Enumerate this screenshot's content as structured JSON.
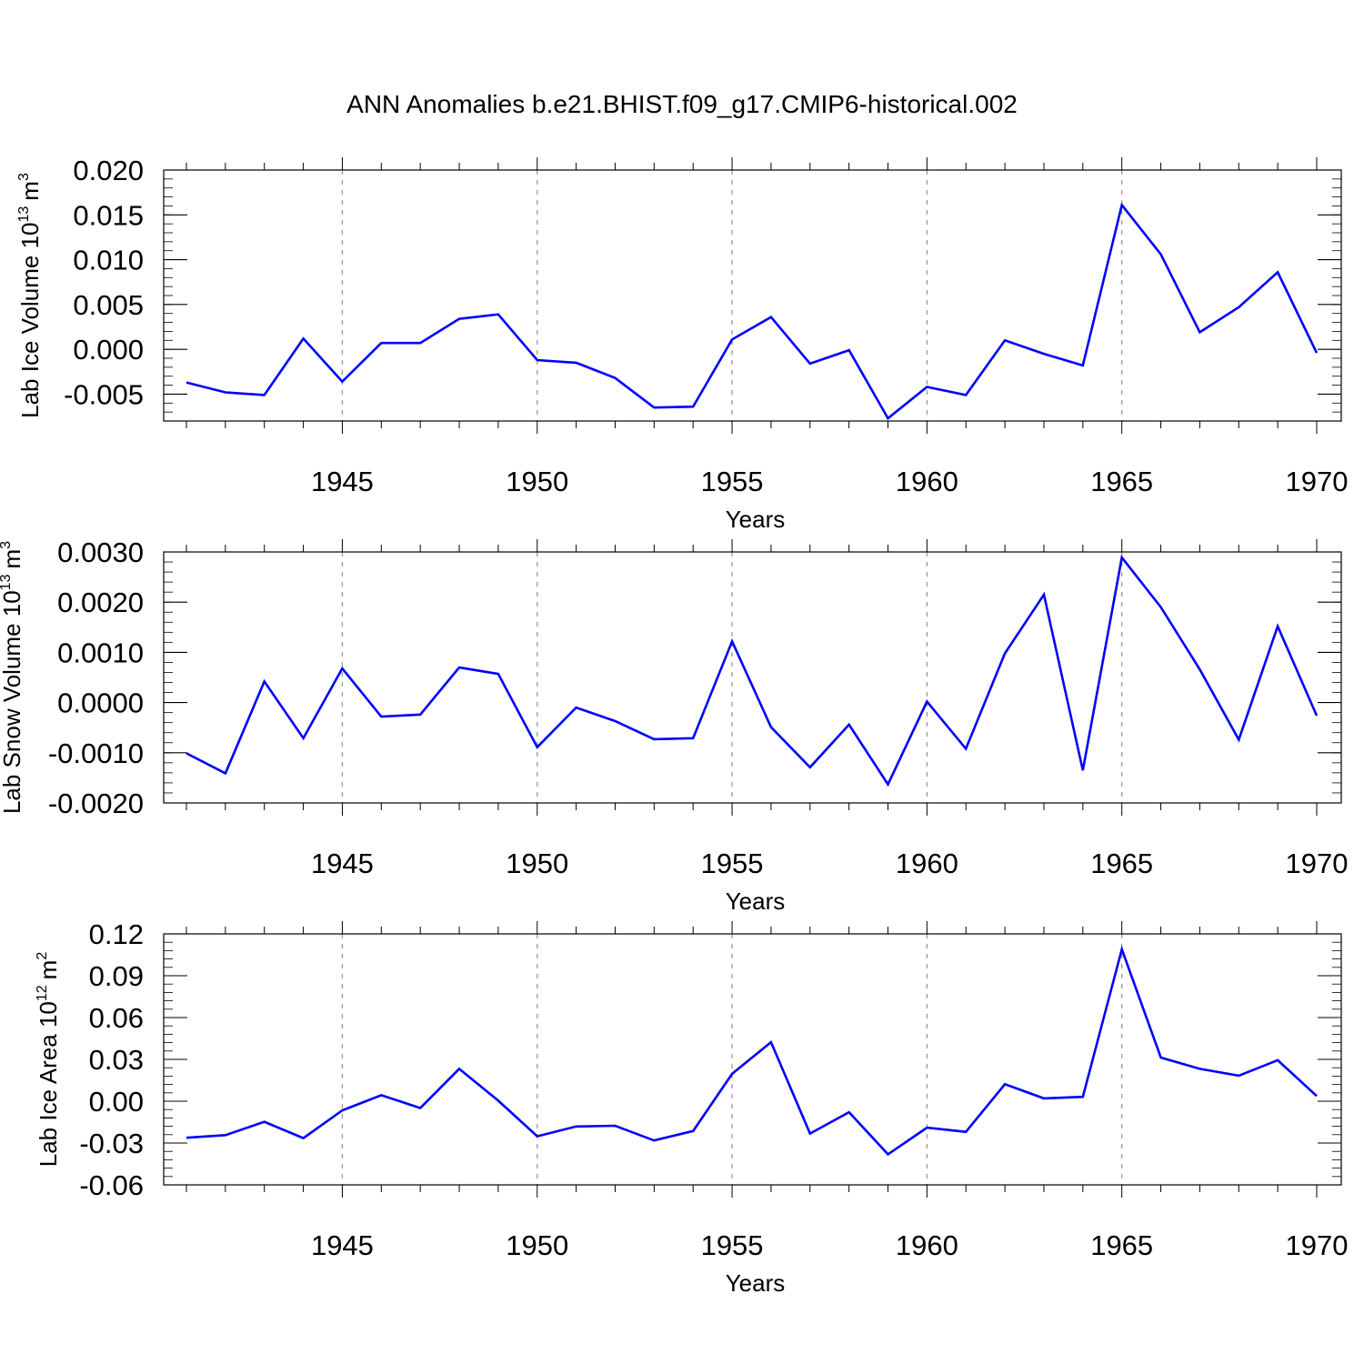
{
  "title": "ANN Anomalies b.e21.BHIST.f09_g17.CMIP6-historical.002",
  "line_color": "#0000ff",
  "chart_data": [
    {
      "type": "line",
      "ylabel_main": "Lab Ice Volume 10",
      "ylabel_exp": "13",
      "ylabel_unit": "m",
      "ylabel_unit_exp": "3",
      "xlabel": "Years",
      "xlim": [
        1941,
        1970
      ],
      "ylim": [
        -0.008,
        0.02
      ],
      "yticks": [
        -0.005,
        0.0,
        0.005,
        0.01,
        0.015,
        0.02
      ],
      "ytick_labels": [
        "-0.005",
        "0.000",
        "0.005",
        "0.010",
        "0.015",
        "0.020"
      ],
      "xticks": [
        1945,
        1950,
        1955,
        1960,
        1965,
        1970
      ],
      "xtick_labels": [
        "1945",
        "1950",
        "1955",
        "1960",
        "1965",
        "1970"
      ],
      "grid_x": [
        1945,
        1950,
        1955,
        1960,
        1965
      ],
      "x": [
        1941,
        1942,
        1943,
        1944,
        1945,
        1946,
        1947,
        1948,
        1949,
        1950,
        1951,
        1952,
        1953,
        1954,
        1955,
        1956,
        1957,
        1958,
        1959,
        1960,
        1961,
        1962,
        1963,
        1964,
        1965,
        1966,
        1967,
        1968,
        1969,
        1970
      ],
      "values": [
        -0.0037,
        -0.0048,
        -0.0051,
        0.0012,
        -0.0036,
        0.0007,
        0.0007,
        0.0034,
        0.0039,
        -0.0012,
        -0.0015,
        -0.0032,
        -0.0065,
        -0.0064,
        0.0011,
        0.0036,
        -0.0016,
        -0.0001,
        -0.0077,
        -0.0042,
        -0.0051,
        0.001,
        -0.0005,
        -0.0018,
        0.0161,
        0.0106,
        0.0019,
        0.0047,
        0.0086,
        -0.0004
      ]
    },
    {
      "type": "line",
      "ylabel_main": "Lab Snow Volume 10",
      "ylabel_exp": "13",
      "ylabel_unit": "m",
      "ylabel_unit_exp": "3",
      "xlabel": "Years",
      "xlim": [
        1941,
        1970
      ],
      "ylim": [
        -0.002,
        0.003
      ],
      "yticks": [
        -0.002,
        -0.001,
        0.0,
        0.001,
        0.002,
        0.003
      ],
      "ytick_labels": [
        "-0.0020",
        "-0.0010",
        "0.0000",
        "0.0010",
        "0.0020",
        "0.0030"
      ],
      "xticks": [
        1945,
        1950,
        1955,
        1960,
        1965,
        1970
      ],
      "xtick_labels": [
        "1945",
        "1950",
        "1955",
        "1960",
        "1965",
        "1970"
      ],
      "grid_x": [
        1945,
        1950,
        1955,
        1960,
        1965
      ],
      "x": [
        1941,
        1942,
        1943,
        1944,
        1945,
        1946,
        1947,
        1948,
        1949,
        1950,
        1951,
        1952,
        1953,
        1954,
        1955,
        1956,
        1957,
        1958,
        1959,
        1960,
        1961,
        1962,
        1963,
        1964,
        1965,
        1966,
        1967,
        1968,
        1969,
        1970
      ],
      "values": [
        -0.00101,
        -0.00141,
        0.00042,
        -0.00071,
        0.00068,
        -0.00028,
        -0.00024,
        0.0007,
        0.00057,
        -0.00089,
        -0.0001,
        -0.00037,
        -0.00073,
        -0.00071,
        0.00122,
        -0.00049,
        -0.00129,
        -0.00044,
        -0.00163,
        2e-05,
        -0.00092,
        0.00098,
        0.00215,
        -0.00135,
        0.00289,
        0.0019,
        0.00066,
        -0.00074,
        0.00152,
        -0.00026
      ]
    },
    {
      "type": "line",
      "ylabel_main": "Lab Ice Area 10",
      "ylabel_exp": "12",
      "ylabel_unit": "m",
      "ylabel_unit_exp": "2",
      "xlabel": "Years",
      "xlim": [
        1941,
        1970
      ],
      "ylim": [
        -0.06,
        0.12
      ],
      "yticks": [
        -0.06,
        -0.03,
        0.0,
        0.03,
        0.06,
        0.09,
        0.12
      ],
      "ytick_labels": [
        "-0.06",
        "-0.03",
        "0.00",
        "0.03",
        "0.06",
        "0.09",
        "0.12"
      ],
      "xticks": [
        1945,
        1950,
        1955,
        1960,
        1965,
        1970
      ],
      "xtick_labels": [
        "1945",
        "1950",
        "1955",
        "1960",
        "1965",
        "1970"
      ],
      "grid_x": [
        1945,
        1950,
        1955,
        1960,
        1965
      ],
      "x": [
        1941,
        1942,
        1943,
        1944,
        1945,
        1946,
        1947,
        1948,
        1949,
        1950,
        1951,
        1952,
        1953,
        1954,
        1955,
        1956,
        1957,
        1958,
        1959,
        1960,
        1961,
        1962,
        1963,
        1964,
        1965,
        1966,
        1967,
        1968,
        1969,
        1970
      ],
      "values": [
        -0.0262,
        -0.0243,
        -0.0148,
        -0.0265,
        -0.0066,
        0.0043,
        -0.0049,
        0.0232,
        0.0004,
        -0.0252,
        -0.0181,
        -0.0176,
        -0.0282,
        -0.0214,
        0.0196,
        0.0423,
        -0.0232,
        -0.0079,
        -0.0381,
        -0.019,
        -0.022,
        0.0122,
        0.002,
        0.0031,
        0.109,
        0.0313,
        0.0232,
        0.0183,
        0.0294,
        0.0037
      ]
    }
  ]
}
